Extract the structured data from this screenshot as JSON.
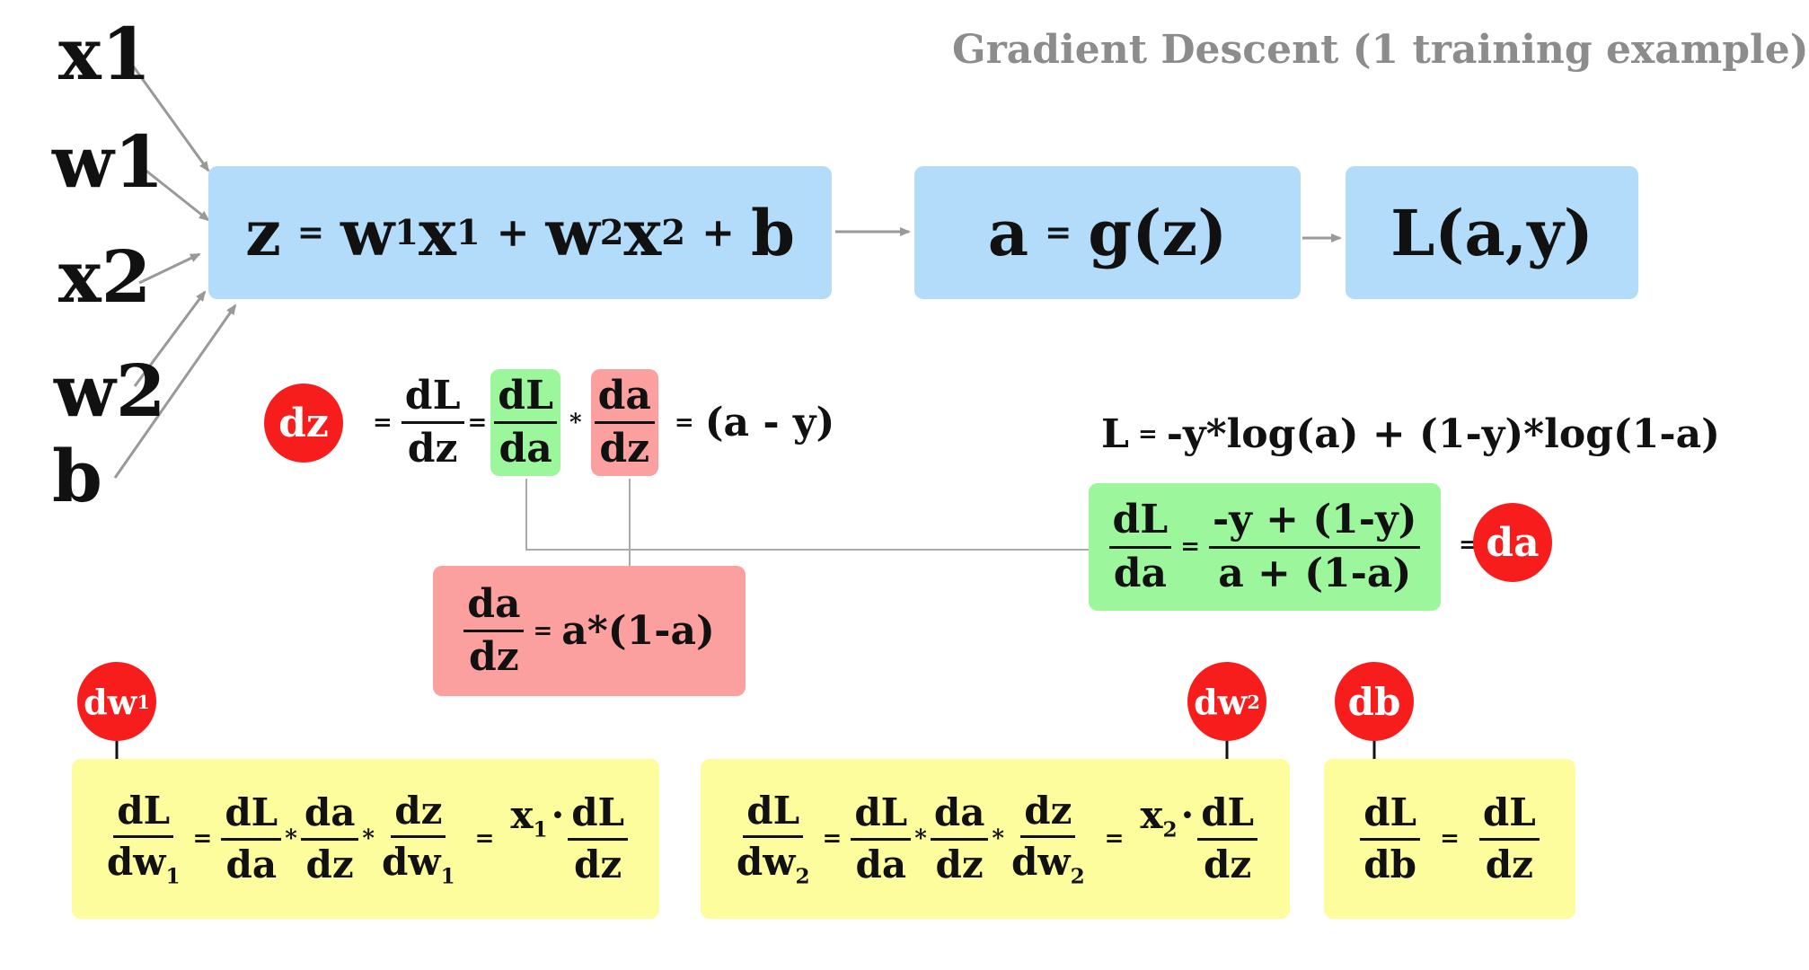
{
  "title": "Gradient Descent (1 training example)",
  "inputs": [
    "x1",
    "w1",
    "x2",
    "w2",
    "b"
  ],
  "forward": {
    "z_eq": {
      "lhs": "z",
      "eq": "=",
      "w1": "w",
      "sub1": "1",
      "x1": "x",
      "subx1": "1",
      "plus1": "+",
      "w2": "w",
      "sub2": "2",
      "x2": "x",
      "subx2": "2",
      "plus2": "+",
      "b": "b"
    },
    "a_eq": {
      "lhs": "a",
      "eq": "=",
      "rhs": "g(z)"
    },
    "loss": "L(a,y)"
  },
  "dz_row": {
    "badge": "dz",
    "eq1": "=",
    "num1": "dL",
    "den1": "dz",
    "eq2": "=",
    "num2": "dL",
    "den2": "da",
    "mul": "*",
    "num3": "da",
    "den3": "dz",
    "eq3": "=",
    "result": "(a - y)"
  },
  "loss_def": {
    "L": "L",
    "eq": "=",
    "rhs": "-y*log(a) + (1-y)*log(1-a)"
  },
  "da_box": {
    "num1": "dL",
    "den1": "da",
    "eq": "=",
    "num2": "-y + (1-y)",
    "den2": "a + (1-a)",
    "eq2": "=",
    "badge": "da"
  },
  "dadz_box": {
    "num": "da",
    "den": "dz",
    "eq": "=",
    "rhs": "a*(1-a)"
  },
  "dw1": {
    "badge": "dw",
    "badge_sub": "1",
    "n1": "dL",
    "d1": "dw",
    "d1sub": "1",
    "eq1": "=",
    "n2": "dL",
    "d2": "da",
    "m1": "*",
    "n3": "da",
    "d3": "dz",
    "m2": "*",
    "n4": "dz",
    "d4": "dw",
    "d4sub": "1",
    "eq2": "=",
    "x": "x",
    "xsub": "1",
    "dot": "·",
    "n5": "dL",
    "d5": "dz"
  },
  "dw2": {
    "badge": "dw",
    "badge_sub": "2",
    "n1": "dL",
    "d1": "dw",
    "d1sub": "2",
    "eq1": "=",
    "n2": "dL",
    "d2": "da",
    "m1": "*",
    "n3": "da",
    "d3": "dz",
    "m2": "*",
    "n4": "dz",
    "d4": "dw",
    "d4sub": "2",
    "eq2": "=",
    "x": "x",
    "xsub": "2",
    "dot": "·",
    "n5": "dL",
    "d5": "dz"
  },
  "db": {
    "badge": "db",
    "n1": "dL",
    "d1": "db",
    "eq": "=",
    "n2": "dL",
    "d2": "dz"
  },
  "colors": {
    "blue": "#b3dcfb",
    "green": "#9cf79c",
    "pink": "#fc9f9f",
    "yellow": "#fdfd9e",
    "badge": "#f71d1d",
    "arrow": "#999999"
  }
}
